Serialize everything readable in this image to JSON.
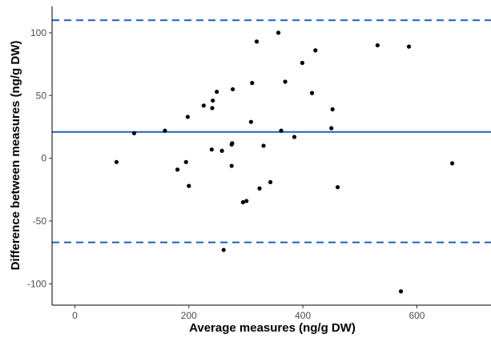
{
  "chart_data": {
    "type": "scatter",
    "title": "",
    "xlabel": "Average measures (ng/g DW)",
    "ylabel": "Difference between measures (ng/g DW)",
    "xlim": [
      -40,
      730
    ],
    "ylim": [
      -117,
      121
    ],
    "xticks": [
      0,
      200,
      400,
      600
    ],
    "yticks": [
      -100,
      -50,
      0,
      50,
      100
    ],
    "grid": false,
    "reference_lines": [
      {
        "y": 21,
        "style": "solid"
      },
      {
        "y": 110,
        "style": "dashed"
      },
      {
        "y": -67,
        "style": "dashed"
      }
    ],
    "colors": {
      "points": "#000000",
      "lines": "#1f5fbf",
      "axis": "#000000"
    },
    "points": [
      {
        "x": 73,
        "y": -3
      },
      {
        "x": 104,
        "y": 20
      },
      {
        "x": 158,
        "y": 22
      },
      {
        "x": 180,
        "y": -9
      },
      {
        "x": 195,
        "y": -3
      },
      {
        "x": 198,
        "y": 33
      },
      {
        "x": 200,
        "y": -22
      },
      {
        "x": 226,
        "y": 42
      },
      {
        "x": 240,
        "y": 7
      },
      {
        "x": 241,
        "y": 40
      },
      {
        "x": 242,
        "y": 46
      },
      {
        "x": 249,
        "y": 53
      },
      {
        "x": 258,
        "y": 6
      },
      {
        "x": 261,
        "y": -73
      },
      {
        "x": 275,
        "y": -6
      },
      {
        "x": 275,
        "y": 11
      },
      {
        "x": 276,
        "y": 12
      },
      {
        "x": 277,
        "y": 55
      },
      {
        "x": 295,
        "y": -35
      },
      {
        "x": 301,
        "y": -34
      },
      {
        "x": 309,
        "y": 29
      },
      {
        "x": 311,
        "y": 60
      },
      {
        "x": 319,
        "y": 93
      },
      {
        "x": 324,
        "y": -24
      },
      {
        "x": 331,
        "y": 10
      },
      {
        "x": 343,
        "y": -19
      },
      {
        "x": 357,
        "y": 100
      },
      {
        "x": 362,
        "y": 22
      },
      {
        "x": 369,
        "y": 61
      },
      {
        "x": 385,
        "y": 17
      },
      {
        "x": 399,
        "y": 76
      },
      {
        "x": 416,
        "y": 52
      },
      {
        "x": 422,
        "y": 86
      },
      {
        "x": 450,
        "y": 24
      },
      {
        "x": 452,
        "y": 39
      },
      {
        "x": 461,
        "y": -23
      },
      {
        "x": 531,
        "y": 90
      },
      {
        "x": 572,
        "y": -106
      },
      {
        "x": 586,
        "y": 89
      },
      {
        "x": 662,
        "y": -4
      }
    ]
  }
}
